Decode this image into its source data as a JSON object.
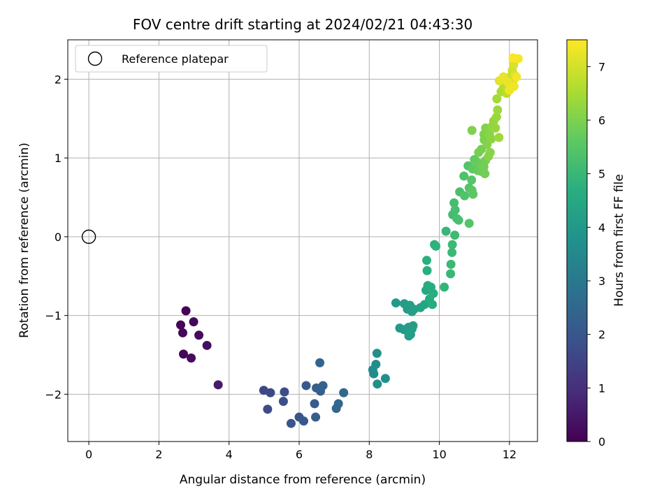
{
  "chart_data": {
    "type": "scatter",
    "title": "FOV centre drift starting at 2024/02/21 04:43:30",
    "xlabel": "Angular distance from reference (arcmin)",
    "ylabel": "Rotation from reference (arcmin)",
    "xlim": [
      -0.6,
      12.8
    ],
    "ylim": [
      -2.6,
      2.5
    ],
    "xticks": [
      0,
      2,
      4,
      6,
      8,
      10,
      12
    ],
    "yticks": [
      -2,
      -1,
      0,
      1,
      2
    ],
    "xtick_labels": [
      "0",
      "2",
      "4",
      "6",
      "8",
      "10",
      "12"
    ],
    "ytick_labels": [
      "−2",
      "−1",
      "0",
      "1",
      "2"
    ],
    "grid": true,
    "legend": {
      "placement": "top-left",
      "entries": [
        "Reference platepar"
      ]
    },
    "reference_point": {
      "x": 0,
      "y": 0
    },
    "colorbar": {
      "label": "Hours from first FF file",
      "range": [
        0,
        7.5
      ],
      "ticks": [
        0,
        1,
        2,
        3,
        4,
        5,
        6,
        7
      ],
      "tick_labels": [
        "0",
        "1",
        "2",
        "3",
        "4",
        "5",
        "6",
        "7"
      ],
      "colormap": "viridis"
    },
    "points": [
      [
        2.77,
        -0.94,
        0.05
      ],
      [
        2.62,
        -1.12,
        0.08
      ],
      [
        2.68,
        -1.22,
        0.1
      ],
      [
        2.99,
        -1.08,
        0.12
      ],
      [
        2.7,
        -1.49,
        0.15
      ],
      [
        3.14,
        -1.25,
        0.22
      ],
      [
        2.92,
        -1.54,
        0.25
      ],
      [
        3.37,
        -1.38,
        0.3
      ],
      [
        3.69,
        -1.88,
        0.55
      ],
      [
        4.99,
        -1.95,
        1.6
      ],
      [
        5.18,
        -1.98,
        1.65
      ],
      [
        5.1,
        -2.19,
        1.7
      ],
      [
        5.58,
        -1.97,
        1.75
      ],
      [
        5.55,
        -2.09,
        1.8
      ],
      [
        5.77,
        -2.37,
        1.95
      ],
      [
        6.0,
        -2.29,
        2.0
      ],
      [
        6.13,
        -2.34,
        2.05
      ],
      [
        6.2,
        -1.89,
        2.1
      ],
      [
        6.44,
        -2.12,
        2.15
      ],
      [
        6.47,
        -2.29,
        2.2
      ],
      [
        6.49,
        -1.92,
        2.25
      ],
      [
        6.61,
        -1.96,
        2.3
      ],
      [
        6.68,
        -1.89,
        2.35
      ],
      [
        6.59,
        -1.6,
        2.4
      ],
      [
        7.06,
        -2.18,
        2.45
      ],
      [
        7.12,
        -2.12,
        2.5
      ],
      [
        7.27,
        -1.98,
        2.55
      ],
      [
        8.1,
        -1.69,
        3.6
      ],
      [
        8.13,
        -1.74,
        3.62
      ],
      [
        8.19,
        -1.62,
        3.65
      ],
      [
        8.22,
        -1.48,
        3.68
      ],
      [
        8.23,
        -1.87,
        3.7
      ],
      [
        8.46,
        -1.8,
        3.72
      ],
      [
        8.76,
        -0.84,
        4.05
      ],
      [
        8.87,
        -1.16,
        4.07
      ],
      [
        8.99,
        -1.18,
        4.08
      ],
      [
        9.0,
        -0.85,
        4.1
      ],
      [
        9.09,
        -0.92,
        4.12
      ],
      [
        9.12,
        -1.15,
        4.14
      ],
      [
        9.13,
        -1.26,
        4.15
      ],
      [
        9.16,
        -0.87,
        4.16
      ],
      [
        9.18,
        -1.24,
        4.17
      ],
      [
        9.22,
        -1.17,
        4.18
      ],
      [
        9.25,
        -1.13,
        4.2
      ],
      [
        9.28,
        -0.92,
        4.22
      ],
      [
        9.22,
        -0.95,
        4.23
      ],
      [
        9.46,
        -0.9,
        4.3
      ],
      [
        9.58,
        -0.86,
        4.4
      ],
      [
        9.62,
        -0.68,
        4.5
      ],
      [
        9.67,
        -0.62,
        4.55
      ],
      [
        9.72,
        -0.79,
        4.6
      ],
      [
        9.76,
        -0.64,
        4.62
      ],
      [
        9.8,
        -0.86,
        4.65
      ],
      [
        9.83,
        -0.72,
        4.68
      ],
      [
        9.65,
        -0.43,
        4.7
      ],
      [
        9.64,
        -0.3,
        4.72
      ],
      [
        9.86,
        -0.1,
        4.8
      ],
      [
        9.9,
        -0.12,
        4.82
      ],
      [
        10.14,
        -0.64,
        4.9
      ],
      [
        10.19,
        0.07,
        4.95
      ],
      [
        10.32,
        -0.47,
        5.0
      ],
      [
        10.33,
        -0.35,
        5.02
      ],
      [
        10.36,
        -0.2,
        5.04
      ],
      [
        10.37,
        -0.1,
        5.06
      ],
      [
        10.44,
        0.02,
        5.08
      ],
      [
        10.38,
        0.28,
        5.15
      ],
      [
        10.45,
        0.34,
        5.2
      ],
      [
        10.42,
        0.43,
        5.22
      ],
      [
        10.5,
        0.23,
        5.25
      ],
      [
        10.55,
        0.21,
        5.27
      ],
      [
        10.58,
        0.57,
        5.3
      ],
      [
        10.7,
        0.77,
        5.35
      ],
      [
        10.72,
        0.52,
        5.38
      ],
      [
        10.82,
        0.9,
        5.42
      ],
      [
        10.85,
        0.17,
        5.45
      ],
      [
        10.85,
        0.62,
        5.46
      ],
      [
        10.92,
        0.72,
        5.5
      ],
      [
        10.93,
        0.59,
        5.52
      ],
      [
        10.96,
        0.54,
        5.55
      ],
      [
        10.95,
        0.86,
        5.6
      ],
      [
        11.0,
        0.98,
        5.65
      ],
      [
        11.06,
        0.95,
        5.68
      ],
      [
        11.1,
        0.84,
        5.7
      ],
      [
        11.14,
        0.89,
        5.72
      ],
      [
        11.17,
        0.93,
        5.75
      ],
      [
        11.19,
        0.83,
        5.78
      ],
      [
        11.22,
        0.91,
        5.8
      ],
      [
        11.25,
        0.86,
        5.82
      ],
      [
        11.27,
        0.89,
        5.84
      ],
      [
        11.3,
        0.8,
        5.86
      ],
      [
        11.32,
        0.97,
        5.88
      ],
      [
        11.12,
        1.07,
        5.9
      ],
      [
        11.2,
        1.11,
        5.92
      ],
      [
        11.28,
        1.23,
        5.95
      ],
      [
        10.93,
        1.35,
        6.0
      ],
      [
        11.27,
        1.3,
        6.02
      ],
      [
        11.32,
        1.38,
        6.05
      ],
      [
        11.36,
        1.17,
        6.08
      ],
      [
        11.4,
        1.02,
        6.1
      ],
      [
        11.45,
        1.07,
        6.12
      ],
      [
        11.43,
        1.3,
        6.15
      ],
      [
        11.48,
        1.24,
        6.18
      ],
      [
        11.5,
        1.4,
        6.2
      ],
      [
        11.55,
        1.47,
        6.25
      ],
      [
        11.6,
        1.38,
        6.28
      ],
      [
        11.63,
        1.52,
        6.32
      ],
      [
        11.66,
        1.61,
        6.36
      ],
      [
        11.7,
        1.26,
        6.4
      ],
      [
        11.64,
        1.75,
        6.45
      ],
      [
        11.76,
        1.84,
        6.55
      ],
      [
        11.82,
        1.88,
        6.6
      ],
      [
        11.85,
        1.93,
        6.65
      ],
      [
        11.92,
        1.82,
        6.7
      ],
      [
        11.95,
        1.88,
        6.75
      ],
      [
        12.0,
        1.93,
        6.8
      ],
      [
        12.02,
        2.03,
        6.85
      ],
      [
        12.05,
        1.95,
        6.9
      ],
      [
        12.08,
        2.11,
        6.95
      ],
      [
        12.1,
        1.98,
        7.0
      ],
      [
        12.12,
        2.18,
        7.05
      ],
      [
        12.15,
        2.05,
        7.1
      ],
      [
        12.17,
        2.26,
        7.15
      ],
      [
        11.71,
        1.98,
        7.2
      ],
      [
        11.83,
        2.03,
        7.25
      ],
      [
        11.95,
        1.96,
        7.28
      ],
      [
        12.0,
        1.86,
        7.32
      ],
      [
        12.13,
        1.91,
        7.35
      ],
      [
        12.2,
        2.03,
        7.38
      ],
      [
        12.25,
        2.26,
        7.42
      ],
      [
        12.1,
        2.27,
        7.45
      ]
    ]
  }
}
